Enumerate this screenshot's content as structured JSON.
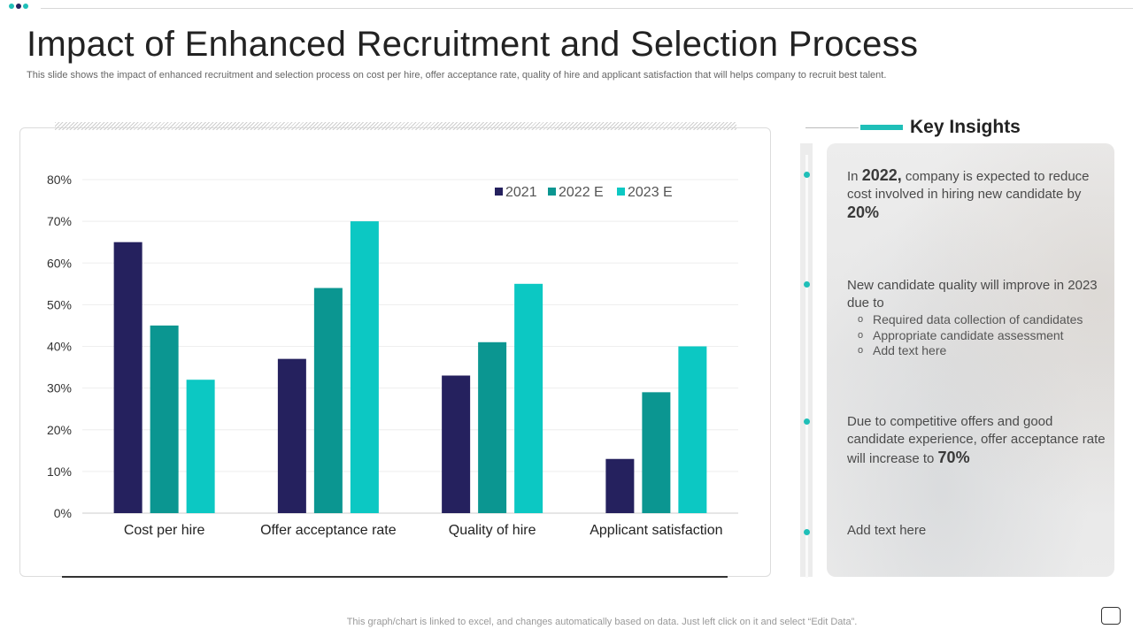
{
  "title": "Impact of Enhanced Recruitment and Selection Process",
  "subtitle": "This slide shows the impact of enhanced recruitment and selection process on cost per hire, offer acceptance rate, quality of hire and applicant satisfaction that will helps company to recruit best talent.",
  "colors": {
    "s2021": "#25215e",
    "s2022": "#0b9691",
    "s2023": "#0cc8c3",
    "accent": "#1fbfb8"
  },
  "chart_data": {
    "type": "bar",
    "categories": [
      "Cost per hire",
      "Offer acceptance rate",
      "Quality of hire",
      "Applicant satisfaction"
    ],
    "series": [
      {
        "name": "2021",
        "values": [
          65,
          37,
          33,
          13
        ]
      },
      {
        "name": "2022 E",
        "values": [
          45,
          54,
          41,
          29
        ]
      },
      {
        "name": "2023 E",
        "values": [
          32,
          70,
          55,
          40
        ]
      }
    ],
    "y_ticks": [
      "0%",
      "10%",
      "20%",
      "30%",
      "40%",
      "50%",
      "60%",
      "70%",
      "80%"
    ],
    "ylim": [
      0,
      80
    ],
    "legend_position": "top-right",
    "grid": true
  },
  "insights": {
    "heading": "Key Insights",
    "items": [
      {
        "pre": "In ",
        "strong": "2022,",
        "mid": " company is expected to reduce cost involved in hiring new candidate by ",
        "strong2": "20%"
      },
      {
        "text": "New candidate quality will improve in 2023 due to",
        "subitems": [
          "Required data collection of candidates",
          "Appropriate candidate assessment",
          "Add text here"
        ]
      },
      {
        "text": "Due to competitive offers and good candidate experience, offer acceptance rate will increase to ",
        "strong": "70%"
      },
      {
        "text": "Add text here"
      }
    ]
  },
  "footer": "This graph/chart is linked to excel,  and changes automatically based on data. Just left click on it and select “Edit Data”."
}
